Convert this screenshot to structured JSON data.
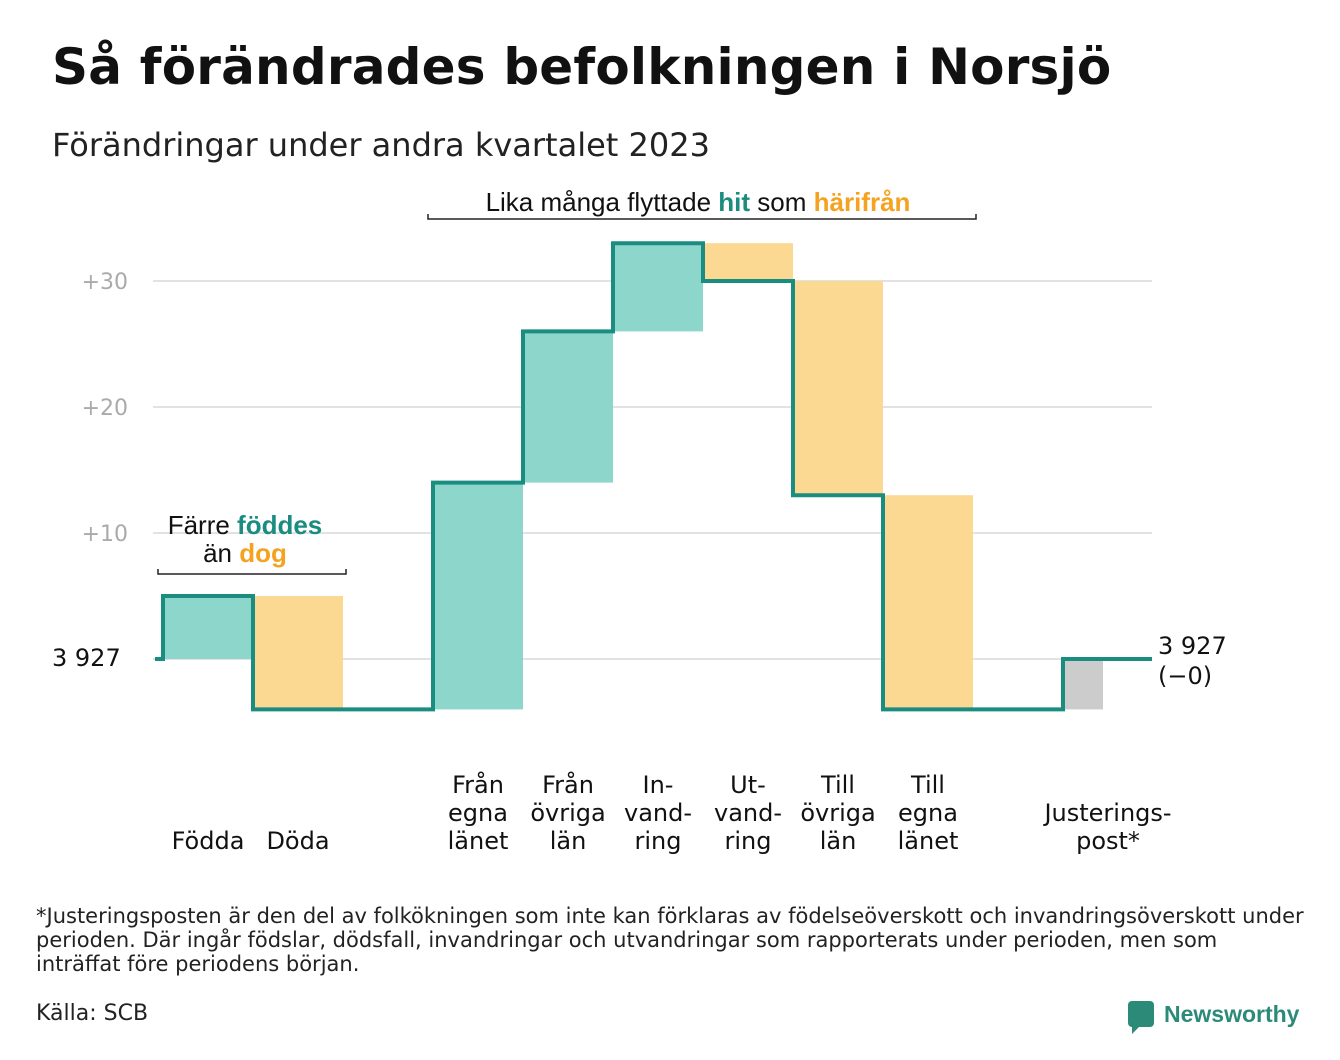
{
  "title": "Så förändrades befolkningen i Norsjö",
  "subtitle": "Förändringar under andra kvartalet 2023",
  "colors": {
    "inflow": "#8dd6cc",
    "outflow": "#fcd993",
    "adjust": "#cccccc",
    "line": "#1a8c80",
    "teal_text": "#1a8c80",
    "orange_text": "#f4a21f",
    "grid": "#e2e2e2",
    "tick": "#aaaaaa"
  },
  "chart_data": {
    "type": "waterfall",
    "base_label": "3  927",
    "end_label_1": "3 927",
    "end_label_2": "(−0)",
    "yticks": [
      "+10",
      "+20",
      "+30"
    ],
    "ytick_values": [
      10,
      20,
      30
    ],
    "ylim": [
      -5,
      33
    ],
    "steps": [
      {
        "label": [
          "Födda"
        ],
        "delta": 5,
        "kind": "inflow"
      },
      {
        "label": [
          "Döda"
        ],
        "delta": -9,
        "kind": "outflow"
      },
      {
        "label": [],
        "delta": 0,
        "kind": "none"
      },
      {
        "label": [
          "Från",
          "egna",
          "länet"
        ],
        "delta": 18,
        "kind": "inflow"
      },
      {
        "label": [
          "Från",
          "övriga",
          "län"
        ],
        "delta": 12,
        "kind": "inflow"
      },
      {
        "label": [
          "In-",
          "vand-",
          "ring"
        ],
        "delta": 7,
        "kind": "inflow"
      },
      {
        "label": [
          "Ut-",
          "vand-",
          "ring"
        ],
        "delta": -3,
        "kind": "outflow"
      },
      {
        "label": [
          "Till",
          "övriga",
          "län"
        ],
        "delta": -17,
        "kind": "outflow"
      },
      {
        "label": [
          "Till",
          "egna",
          "länet"
        ],
        "delta": -17,
        "kind": "outflow"
      },
      {
        "label": [],
        "delta": 0,
        "kind": "none"
      },
      {
        "label": [
          "Justerings-",
          "post*"
        ],
        "delta": 4,
        "kind": "adjust"
      }
    ],
    "annotation_births": {
      "line1_a": "Färre ",
      "line1_b": "föddes",
      "line2_a": "än ",
      "line2_b": "dog"
    },
    "annotation_migration": {
      "part_a": "Lika många flyttade ",
      "part_b": "hit",
      "part_c": " som ",
      "part_d": "härifrån"
    }
  },
  "footnote": "*Justeringsposten är den del av folkökningen som inte kan förklaras av födelseöverskott och invandringsöverskott under perioden. Där ingår födslar, dödsfall, invandringar och utvandringar som rapporterats under perioden, men som inträffat före periodens början.",
  "source": "Källa: SCB",
  "logo_text": "Newsworthy",
  "logo_icon": "newsworthy-logo-icon"
}
